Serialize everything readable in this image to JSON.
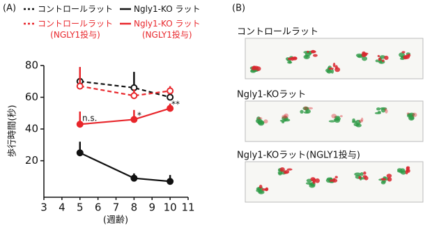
{
  "chart_data": {
    "type": "line",
    "panel_label": "(A)",
    "x_label": "(週齢)",
    "y_label": "歩行時間(秒)",
    "x": [
      5,
      8,
      10
    ],
    "xlim": [
      3,
      11
    ],
    "xticks": [
      3,
      4,
      5,
      6,
      7,
      8,
      9,
      10,
      11
    ],
    "ylim": [
      -3,
      80
    ],
    "yticks": [
      20,
      40,
      60,
      80
    ],
    "series": [
      {
        "name": "コントロールラット",
        "color": "#111111",
        "linestyle": "dashed",
        "marker": "open",
        "values": [
          70,
          66,
          60
        ],
        "errors": [
          9,
          10,
          5
        ]
      },
      {
        "name": "コントロールラット\n(NGLY1投与)",
        "color": "#e8262b",
        "linestyle": "dashed",
        "marker": "open",
        "values": [
          67,
          61,
          64
        ],
        "errors": [
          12,
          4,
          3
        ]
      },
      {
        "name": "Ngly1-KO ラット",
        "color": "#111111",
        "linestyle": "solid",
        "marker": "filled",
        "values": [
          25,
          9,
          7
        ],
        "errors": [
          7,
          3,
          4
        ]
      },
      {
        "name": "Ngly1-KO ラット\n(NGLY1投与)",
        "color": "#e8262b",
        "linestyle": "solid",
        "marker": "filled",
        "values": [
          43,
          46,
          53
        ],
        "errors": [
          8,
          6,
          3
        ]
      }
    ],
    "annotations": [
      "n.s.",
      "*",
      "**"
    ]
  },
  "panel_b": {
    "label": "(B)",
    "images": [
      {
        "caption": "コントロールラット"
      },
      {
        "caption": "Ngly1-KOラット"
      },
      {
        "caption": "Ngly1-KOラット(NGLY1投与)"
      }
    ]
  }
}
